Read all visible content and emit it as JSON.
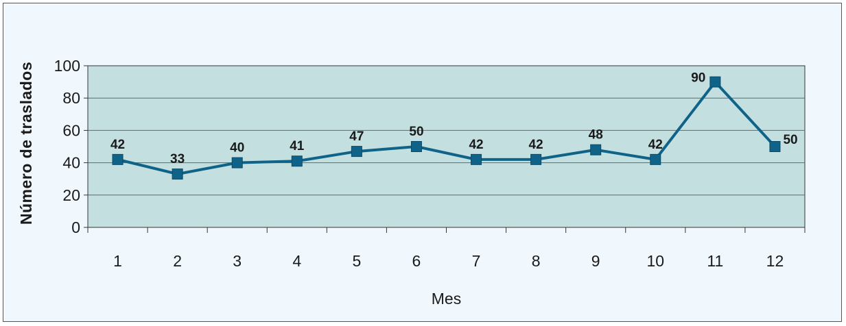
{
  "chart_data": {
    "type": "line",
    "title": "",
    "xlabel": "Mes",
    "ylabel": "Número de traslados",
    "categories": [
      "1",
      "2",
      "3",
      "4",
      "5",
      "6",
      "7",
      "8",
      "9",
      "10",
      "11",
      "12"
    ],
    "values": [
      42,
      33,
      40,
      41,
      47,
      50,
      42,
      42,
      48,
      42,
      90,
      50
    ],
    "ylim": [
      0,
      100
    ],
    "yticks": [
      "0",
      "20",
      "40",
      "60",
      "80",
      "100"
    ],
    "grid": true,
    "legend": "none",
    "colors": {
      "line": "#0f6388",
      "marker": "#0f6388",
      "plot_background": "#c3dfe0",
      "page_background": "#f1f8fd",
      "gridline": "#5a6b6e"
    }
  }
}
